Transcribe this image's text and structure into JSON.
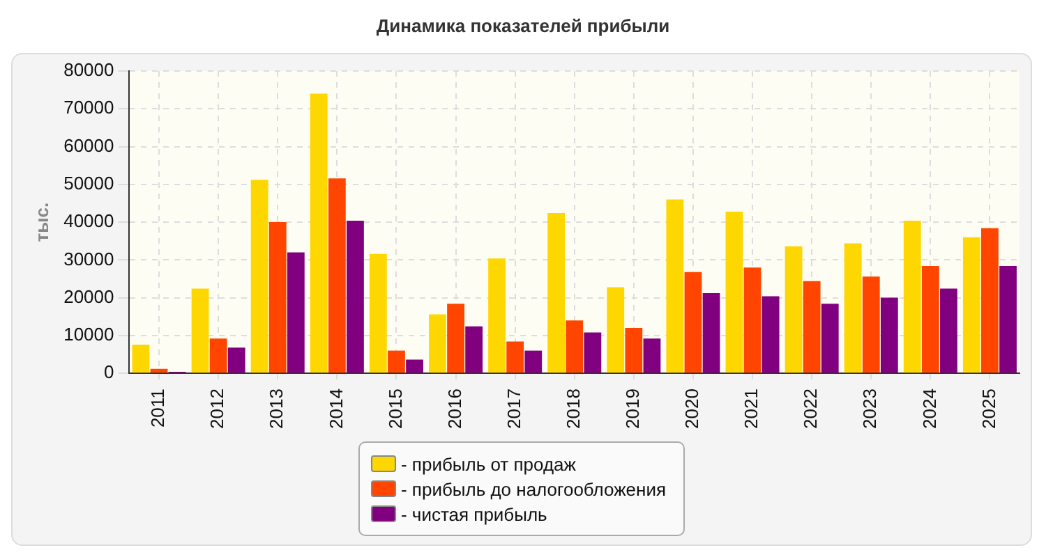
{
  "chart_data": {
    "type": "bar",
    "title": "Динамика показателей прибыли",
    "ylabel": "тыс.",
    "categories": [
      "2011",
      "2012",
      "2013",
      "2014",
      "2015",
      "2016",
      "2017",
      "2018",
      "2019",
      "2020",
      "2021",
      "2022",
      "2023",
      "2024",
      "2025"
    ],
    "series": [
      {
        "name": "- прибыль от продаж",
        "color": "#ffd700",
        "values": [
          7600,
          22400,
          51200,
          74000,
          31600,
          15600,
          30400,
          42400,
          22800,
          46000,
          42800,
          33600,
          34400,
          40400,
          36000
        ]
      },
      {
        "name": "- прибыль до налогообложения",
        "color": "#ff4500",
        "values": [
          1200,
          9200,
          40000,
          51600,
          6000,
          18400,
          8400,
          14000,
          12000,
          26800,
          28000,
          24400,
          25600,
          28400,
          38400
        ]
      },
      {
        "name": "- чистая прибыль",
        "color": "#800080",
        "values": [
          400,
          6800,
          32000,
          40400,
          3600,
          12400,
          6000,
          10800,
          9200,
          21200,
          20400,
          18400,
          20000,
          22400,
          28400
        ]
      }
    ],
    "ylim": [
      0,
      80000
    ],
    "yticks": [
      0,
      10000,
      20000,
      30000,
      40000,
      50000,
      60000,
      70000,
      80000
    ],
    "grid": true,
    "legend": "bottom"
  }
}
